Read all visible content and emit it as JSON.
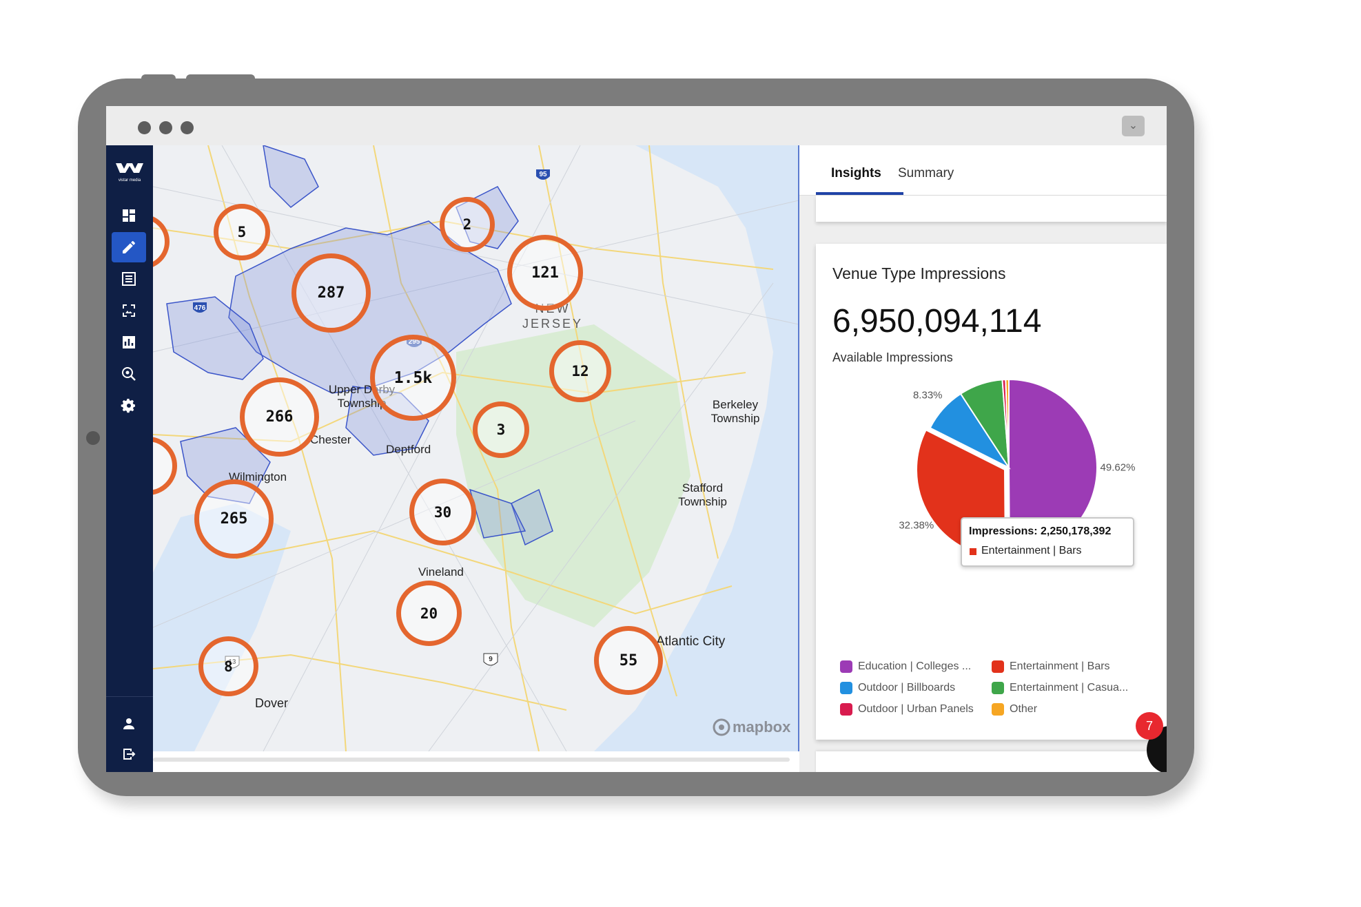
{
  "app": {
    "logo_text": "vistar media"
  },
  "sidebar": {
    "items": [
      {
        "icon": "dashboard-icon"
      },
      {
        "icon": "edit-icon"
      },
      {
        "icon": "list-icon"
      },
      {
        "icon": "image-frame-icon"
      },
      {
        "icon": "bar-chart-icon"
      },
      {
        "icon": "search-location-icon"
      },
      {
        "icon": "settings-icon"
      }
    ],
    "bottom_items": [
      {
        "icon": "user-icon"
      },
      {
        "icon": "logout-icon"
      }
    ]
  },
  "map": {
    "clusters": [
      "5",
      "2",
      "287",
      "121",
      "1.5k",
      "12",
      "266",
      "3",
      "265",
      "30",
      "20",
      "8",
      "55"
    ],
    "labels": {
      "new_jersey": "NEW JERSEY",
      "upper_darby": "Upper Darby Township",
      "chester": "Chester",
      "deptford": "Deptford",
      "wilmington": "Wilmington",
      "berkeley": "Berkeley Township",
      "stafford": "Stafford Township",
      "vineland": "Vineland",
      "atlantic_city": "Atlantic City",
      "dover": "Dover"
    },
    "highway_shields": [
      "95",
      "476",
      "295",
      "13",
      "9"
    ],
    "attribution": "mapbox"
  },
  "panel": {
    "tabs": [
      {
        "label": "Insights",
        "active": true
      },
      {
        "label": "Summary",
        "active": false
      }
    ],
    "card": {
      "title": "Venue Type Impressions",
      "total": "6,950,094,114",
      "total_label": "Available Impressions"
    },
    "tooltip": {
      "title": "Impressions: 2,250,178,392",
      "series": "Entertainment | Bars"
    },
    "notification_count": "7"
  },
  "chart_data": {
    "type": "pie",
    "slices": [
      {
        "name": "Education | Colleges ...",
        "percent": 49.62,
        "label": "49.62%",
        "color": "#9c3bb5"
      },
      {
        "name": "Entertainment | Bars",
        "percent": 32.38,
        "label": "32.38%",
        "color": "#e2321b"
      },
      {
        "name": "Outdoor | Billboards",
        "percent": 8.33,
        "label": "8.33%",
        "color": "#2290e0"
      },
      {
        "name": "Entertainment | Casua...",
        "percent": 7.97,
        "label": "7.97%",
        "color": "#3fa64a"
      },
      {
        "name": "Outdoor | Urban Panels",
        "percent": 0.6,
        "label": "",
        "color": "#d81b4e"
      },
      {
        "name": "Other",
        "percent": 0.58,
        "label": "0.58%",
        "color": "#f6a623"
      }
    ],
    "legend": [
      {
        "name": "Education | Colleges ...",
        "color": "#9c3bb5"
      },
      {
        "name": "Entertainment | Bars",
        "color": "#e2321b"
      },
      {
        "name": "Outdoor | Billboards",
        "color": "#2290e0"
      },
      {
        "name": "Entertainment | Casua...",
        "color": "#3fa64a"
      },
      {
        "name": "Outdoor | Urban Panels",
        "color": "#d81b4e"
      },
      {
        "name": "Other",
        "color": "#f6a623"
      }
    ],
    "legend_position": "bottom"
  }
}
